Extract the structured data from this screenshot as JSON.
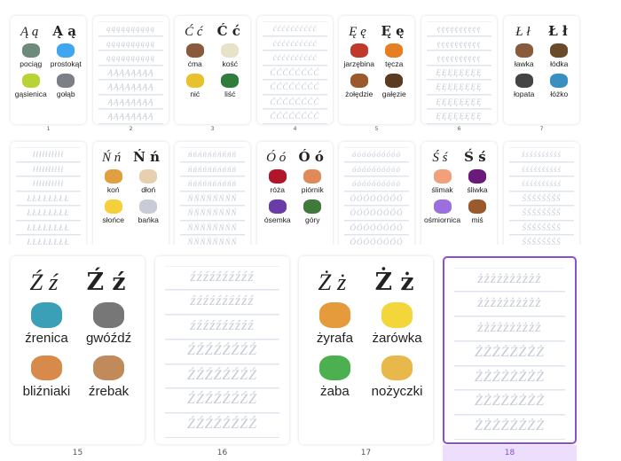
{
  "selected_page": 18,
  "colors": {
    "accent": "#8b4fd6",
    "selected_bg": "#ecdefc",
    "highlight_letter": "#6aa84f"
  },
  "pages": [
    {
      "number": "1",
      "kind": "letter",
      "script": "Ą ą",
      "print": "Ą ą",
      "words": [
        {
          "text": "pociąg",
          "icon": "train",
          "color": "#6d8a7a"
        },
        {
          "text": "prostokąt",
          "icon": "rectangle",
          "color": "#3ea7f0"
        },
        {
          "text": "gąsienica",
          "icon": "caterpillar",
          "color": "#b7d334"
        },
        {
          "text": "gołąb",
          "icon": "pigeon",
          "color": "#7c7f86"
        }
      ]
    },
    {
      "number": "2",
      "kind": "practice",
      "lower": "ą",
      "upper": "Ą"
    },
    {
      "number": "3",
      "kind": "letter",
      "script": "Ć ć",
      "print": "Ć ć",
      "words": [
        {
          "text": "ćma",
          "icon": "moth",
          "color": "#8a5a3c"
        },
        {
          "text": "kość",
          "icon": "bone",
          "color": "#e8e2c8"
        },
        {
          "text": "nić",
          "icon": "thread",
          "color": "#e7c22c"
        },
        {
          "text": "liść",
          "icon": "leaf",
          "color": "#2f7d3a"
        }
      ]
    },
    {
      "number": "4",
      "kind": "practice",
      "lower": "ć",
      "upper": "Ć"
    },
    {
      "number": "5",
      "kind": "letter",
      "script": "Ę ę",
      "print": "Ę ę",
      "words": [
        {
          "text": "jarzębina",
          "icon": "rowan",
          "color": "#c0392b"
        },
        {
          "text": "tęcza",
          "icon": "rainbow",
          "color": "#e67e22"
        },
        {
          "text": "żołędzie",
          "icon": "acorns",
          "color": "#9a5a2c"
        },
        {
          "text": "gałęzie",
          "icon": "branch",
          "color": "#5b3a22"
        }
      ]
    },
    {
      "number": "6",
      "kind": "practice",
      "lower": "ę",
      "upper": "Ę"
    },
    {
      "number": "7",
      "kind": "letter",
      "script": "Ł ł",
      "print": "Ł ł",
      "words": [
        {
          "text": "ławka",
          "icon": "bench",
          "color": "#8a5a3c"
        },
        {
          "text": "łódka",
          "icon": "boat",
          "color": "#6b4a2a"
        },
        {
          "text": "łopata",
          "icon": "shovel",
          "color": "#444444"
        },
        {
          "text": "łóżko",
          "icon": "bed",
          "color": "#3a8fc1"
        }
      ]
    },
    {
      "number": "8",
      "kind": "practice",
      "lower": "ł",
      "upper": "Ł"
    },
    {
      "number": "9",
      "kind": "letter",
      "script": "Ń ń",
      "print": "Ń ń",
      "words": [
        {
          "text": "koń",
          "icon": "horse",
          "color": "#e0a040"
        },
        {
          "text": "dłoń",
          "icon": "hand",
          "color": "#e8cfb0"
        },
        {
          "text": "słońce",
          "icon": "sun",
          "color": "#f6d03c"
        },
        {
          "text": "bańka",
          "icon": "bubble",
          "color": "#c9ccd6"
        }
      ]
    },
    {
      "number": "10",
      "kind": "practice",
      "lower": "ń",
      "upper": "Ń"
    },
    {
      "number": "11",
      "kind": "letter",
      "script": "Ó ó",
      "print": "Ó ó",
      "words": [
        {
          "text": "róża",
          "icon": "rose",
          "color": "#b0152a"
        },
        {
          "text": "piórnik",
          "icon": "pencil-case",
          "color": "#e08a5a"
        },
        {
          "text": "ósemka",
          "icon": "number-eight",
          "color": "#6a3ca8"
        },
        {
          "text": "góry",
          "icon": "mountains",
          "color": "#3f7a3a"
        }
      ]
    },
    {
      "number": "12",
      "kind": "practice",
      "lower": "ó",
      "upper": "Ó"
    },
    {
      "number": "13",
      "kind": "letter",
      "script": "Ś ś",
      "print": "Ś ś",
      "words": [
        {
          "text": "ślimak",
          "icon": "snail",
          "color": "#f2a07a"
        },
        {
          "text": "śliwka",
          "icon": "plum",
          "color": "#6a1a7a"
        },
        {
          "text": "ośmiornica",
          "icon": "octopus",
          "color": "#9b6fe0"
        },
        {
          "text": "miś",
          "icon": "teddy-bear",
          "color": "#9a5a2c"
        }
      ]
    },
    {
      "number": "14",
      "kind": "practice",
      "lower": "ś",
      "upper": "Ś"
    },
    {
      "number": "15",
      "kind": "letter",
      "script": "Ź ź",
      "print": "Ź ź",
      "words": [
        {
          "text": "źrenica",
          "icon": "eye",
          "color": "#3aa0b8"
        },
        {
          "text": "gwóźdź",
          "icon": "nail",
          "color": "#777777"
        },
        {
          "text": "bliźniaki",
          "icon": "twins",
          "color": "#d88a4a"
        },
        {
          "text": "źrebak",
          "icon": "foal",
          "color": "#c08a5a"
        }
      ]
    },
    {
      "number": "16",
      "kind": "practice",
      "lower": "ź",
      "upper": "Ź"
    },
    {
      "number": "17",
      "kind": "letter",
      "script": "Ż ż",
      "print": "Ż ż",
      "words": [
        {
          "text": "żyrafa",
          "icon": "giraffe",
          "color": "#e59a3c"
        },
        {
          "text": "żarówka",
          "icon": "light-bulb",
          "color": "#f3d63a"
        },
        {
          "text": "żaba",
          "icon": "frog",
          "color": "#4caf50"
        },
        {
          "text": "nożyczki",
          "icon": "scissors",
          "color": "#e8b84a"
        }
      ]
    },
    {
      "number": "18",
      "kind": "practice",
      "lower": "ż",
      "upper": "Ż"
    }
  ]
}
